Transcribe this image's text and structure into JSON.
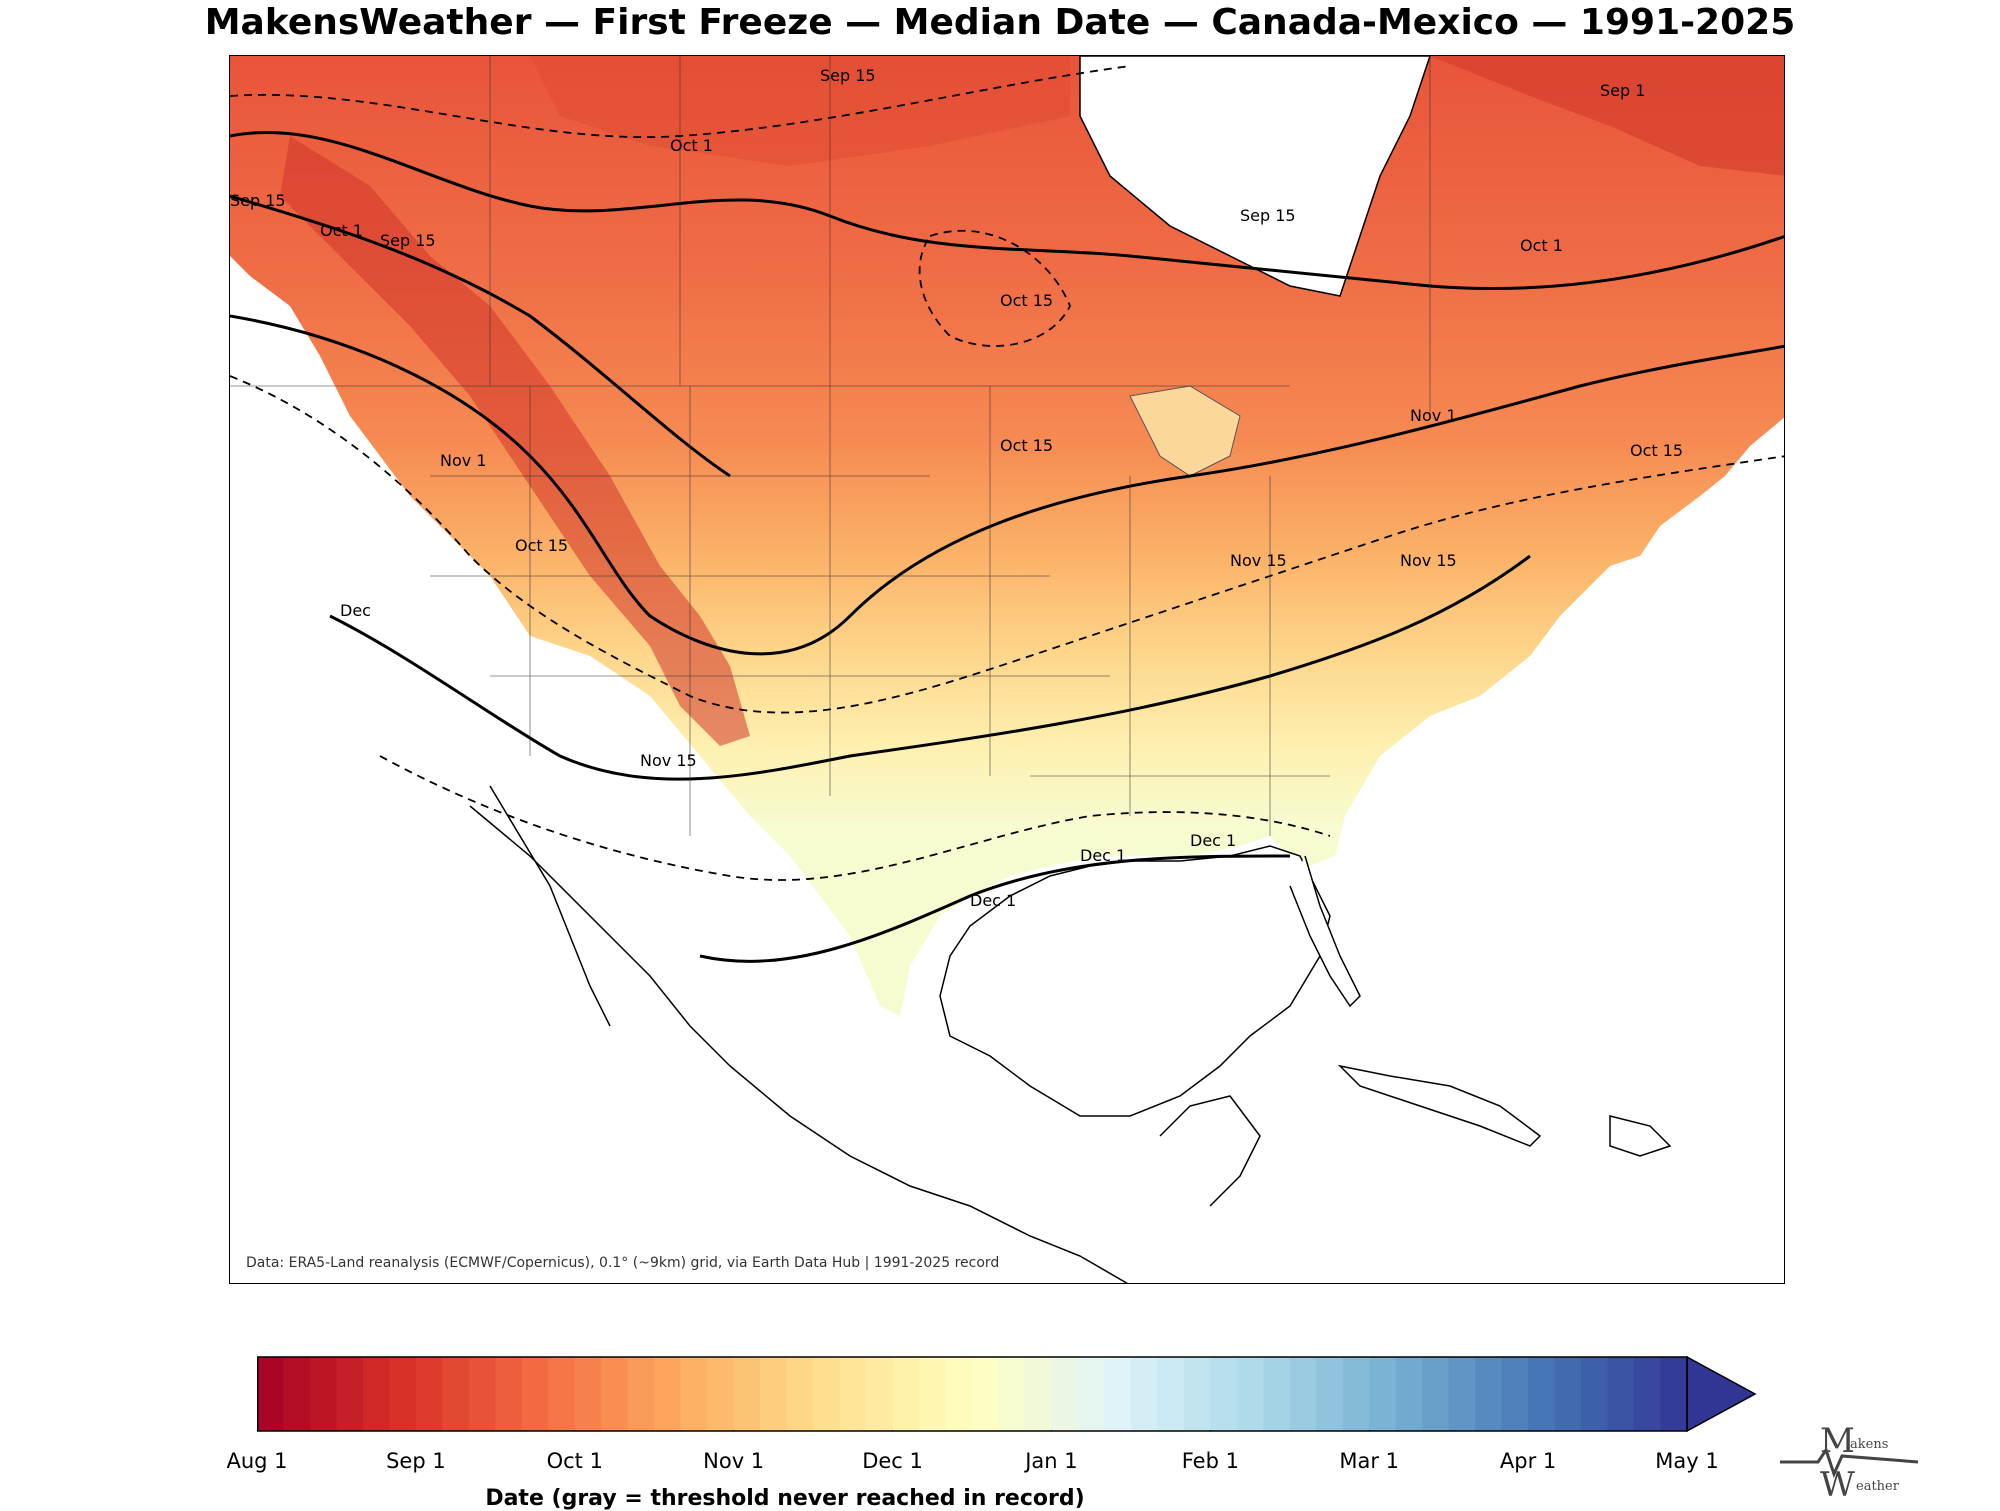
{
  "title": "MakensWeather — First Freeze — Median Date — Canada-Mexico — 1991-2025",
  "map": {
    "source_note": "Data: ERA5-Land reanalysis (ECMWF/Copernicus), 0.1° (~9km) grid, via Earth Data Hub | 1991-2025 record",
    "contour_labels": [
      "Sep 1",
      "Sep 15",
      "Oct 1",
      "Oct 15",
      "Nov 1",
      "Nov 15",
      "Dec 1",
      "Dec"
    ],
    "ocean_color": "#ffffff",
    "land_color_outside_data": "#ffffff"
  },
  "colorbar": {
    "label": "Date (gray = threshold never reached in record)",
    "ticks": [
      "Aug 1",
      "Sep 1",
      "Oct 1",
      "Nov 1",
      "Dec 1",
      "Jan 1",
      "Feb 1",
      "Mar 1",
      "Apr 1",
      "May 1"
    ],
    "colormap": "RdYlBu",
    "extend": "max",
    "colors": [
      "#a50026",
      "#d73027",
      "#f46d43",
      "#fdae61",
      "#fee090",
      "#ffffbf",
      "#e0f3f8",
      "#abd9e9",
      "#74add1",
      "#4575b4",
      "#313695"
    ]
  },
  "logo": {
    "line1": "akens",
    "line2": "eather",
    "initial1": "M",
    "initial2": "W"
  }
}
